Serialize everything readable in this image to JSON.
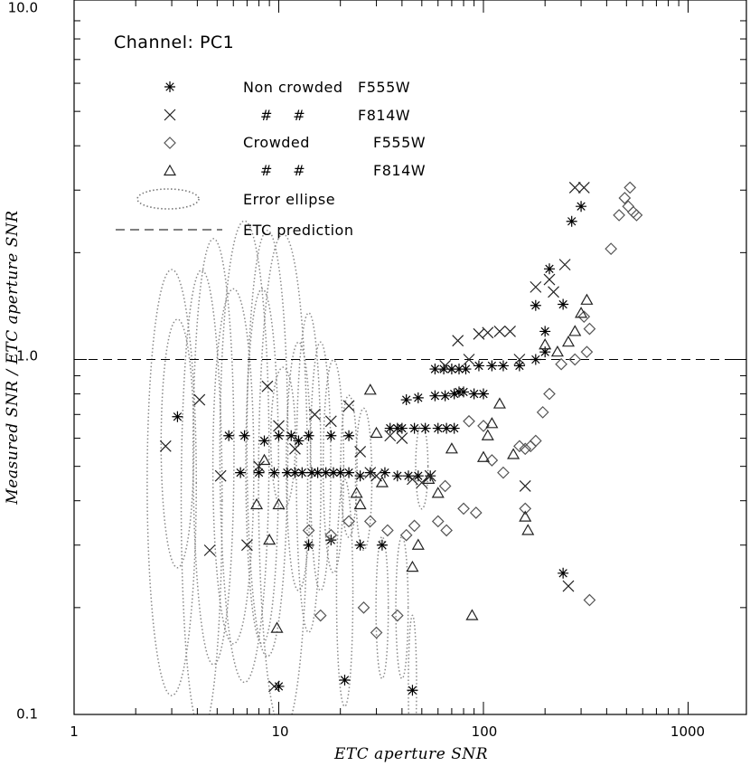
{
  "chart_data": {
    "type": "scatter",
    "title": "",
    "annotation": "Channel: PC1",
    "xlabel": "ETC aperture SNR",
    "ylabel": "Measured SNR / ETC aperture SNR",
    "xscale": "log",
    "yscale": "log",
    "xlim": [
      1,
      2000
    ],
    "ylim": [
      0.1,
      10
    ],
    "x_tick_labels": [
      "1",
      "10",
      "100",
      "1000"
    ],
    "y_tick_labels": [
      "0.1",
      "1.0",
      "10.0"
    ],
    "reference_line": {
      "label": "ETC prediction",
      "y": 1.0,
      "style": "dashed"
    },
    "legend": {
      "placement": "top-left",
      "entries": [
        {
          "marker": "asterisk",
          "col1": "Non crowded",
          "col2": "F555W"
        },
        {
          "marker": "cross",
          "col1": "#    #",
          "col2": "F814W"
        },
        {
          "marker": "diamond",
          "col1": "Crowded",
          "col2": "F555W"
        },
        {
          "marker": "triangle",
          "col1": "#    #",
          "col2": "F814W"
        },
        {
          "marker": "ellipse",
          "col1": "Error ellipse",
          "col2": ""
        },
        {
          "marker": "dashed-line",
          "col1": "ETC prediction",
          "col2": ""
        }
      ]
    },
    "series": [
      {
        "name": "Non crowded F555W",
        "marker": "asterisk",
        "points": [
          [
            3.2,
            0.69
          ],
          [
            5.7,
            0.61
          ],
          [
            6.8,
            0.61
          ],
          [
            8.5,
            0.59
          ],
          [
            10,
            0.61
          ],
          [
            11.5,
            0.61
          ],
          [
            12.5,
            0.59
          ],
          [
            14,
            0.61
          ],
          [
            18,
            0.61
          ],
          [
            22,
            0.61
          ],
          [
            6.5,
            0.48
          ],
          [
            8,
            0.48
          ],
          [
            9.5,
            0.48
          ],
          [
            11,
            0.48
          ],
          [
            12,
            0.48
          ],
          [
            13,
            0.48
          ],
          [
            14.5,
            0.48
          ],
          [
            15.5,
            0.48
          ],
          [
            17,
            0.48
          ],
          [
            18.5,
            0.48
          ],
          [
            20,
            0.48
          ],
          [
            22,
            0.48
          ],
          [
            25,
            0.47
          ],
          [
            28,
            0.48
          ],
          [
            33,
            0.48
          ],
          [
            38,
            0.47
          ],
          [
            43,
            0.47
          ],
          [
            48,
            0.47
          ],
          [
            55,
            0.47
          ],
          [
            35,
            0.64
          ],
          [
            38,
            0.64
          ],
          [
            40,
            0.64
          ],
          [
            46,
            0.64
          ],
          [
            52,
            0.64
          ],
          [
            60,
            0.64
          ],
          [
            66,
            0.64
          ],
          [
            72,
            0.64
          ],
          [
            42,
            0.77
          ],
          [
            48,
            0.78
          ],
          [
            58,
            0.79
          ],
          [
            65,
            0.79
          ],
          [
            72,
            0.8
          ],
          [
            76,
            0.81
          ],
          [
            80,
            0.81
          ],
          [
            90,
            0.8
          ],
          [
            100,
            0.8
          ],
          [
            58,
            0.94
          ],
          [
            64,
            0.94
          ],
          [
            70,
            0.94
          ],
          [
            76,
            0.94
          ],
          [
            82,
            0.94
          ],
          [
            95,
            0.96
          ],
          [
            110,
            0.96
          ],
          [
            125,
            0.96
          ],
          [
            150,
            0.96
          ],
          [
            180,
            1.0
          ],
          [
            200,
            1.05
          ],
          [
            180,
            1.42
          ],
          [
            200,
            1.2
          ],
          [
            210,
            1.8
          ],
          [
            245,
            1.43
          ],
          [
            270,
            2.45
          ],
          [
            300,
            2.7
          ],
          [
            245,
            0.25
          ],
          [
            14,
            0.3
          ],
          [
            18,
            0.31
          ],
          [
            25,
            0.3
          ],
          [
            32,
            0.3
          ],
          [
            10,
            0.12
          ],
          [
            21,
            0.125
          ],
          [
            45,
            0.117
          ]
        ]
      },
      {
        "name": "Non crowded F814W",
        "marker": "cross",
        "points": [
          [
            2.8,
            0.57
          ],
          [
            4.1,
            0.77
          ],
          [
            5.2,
            0.47
          ],
          [
            8.8,
            0.84
          ],
          [
            4.6,
            0.29
          ],
          [
            7,
            0.3
          ],
          [
            10,
            0.65
          ],
          [
            12,
            0.56
          ],
          [
            15,
            0.7
          ],
          [
            18,
            0.67
          ],
          [
            22,
            0.74
          ],
          [
            25,
            0.55
          ],
          [
            28,
            0.48
          ],
          [
            30,
            0.47
          ],
          [
            35,
            0.61
          ],
          [
            40,
            0.6
          ],
          [
            45,
            0.46
          ],
          [
            50,
            0.45
          ],
          [
            55,
            0.47
          ],
          [
            65,
            0.96
          ],
          [
            75,
            1.13
          ],
          [
            85,
            1.0
          ],
          [
            95,
            1.18
          ],
          [
            105,
            1.19
          ],
          [
            120,
            1.2
          ],
          [
            135,
            1.2
          ],
          [
            150,
            1.0
          ],
          [
            180,
            1.6
          ],
          [
            210,
            1.68
          ],
          [
            220,
            1.55
          ],
          [
            250,
            1.85
          ],
          [
            280,
            3.05
          ],
          [
            310,
            3.05
          ],
          [
            260,
            0.23
          ],
          [
            160,
            0.44
          ],
          [
            9.5,
            0.12
          ],
          [
            8,
            0.5
          ]
        ]
      },
      {
        "name": "Crowded F555W",
        "marker": "diamond",
        "points": [
          [
            14,
            0.33
          ],
          [
            16,
            0.19
          ],
          [
            18,
            0.32
          ],
          [
            22,
            0.35
          ],
          [
            26,
            0.2
          ],
          [
            28,
            0.35
          ],
          [
            30,
            0.17
          ],
          [
            34,
            0.33
          ],
          [
            38,
            0.19
          ],
          [
            42,
            0.32
          ],
          [
            46,
            0.34
          ],
          [
            60,
            0.35
          ],
          [
            66,
            0.33
          ],
          [
            80,
            0.38
          ],
          [
            92,
            0.37
          ],
          [
            110,
            0.52
          ],
          [
            125,
            0.48
          ],
          [
            150,
            0.57
          ],
          [
            160,
            0.56
          ],
          [
            170,
            0.57
          ],
          [
            180,
            0.59
          ],
          [
            195,
            0.71
          ],
          [
            210,
            0.8
          ],
          [
            240,
            0.97
          ],
          [
            280,
            1.0
          ],
          [
            320,
            1.05
          ],
          [
            330,
            1.22
          ],
          [
            310,
            1.32
          ],
          [
            330,
            0.21
          ],
          [
            160,
            0.38
          ],
          [
            420,
            2.05
          ],
          [
            460,
            2.55
          ],
          [
            490,
            2.85
          ],
          [
            510,
            2.7
          ],
          [
            520,
            3.05
          ],
          [
            540,
            2.6
          ],
          [
            560,
            2.55
          ],
          [
            85,
            0.67
          ],
          [
            100,
            0.65
          ],
          [
            65,
            0.44
          ]
        ]
      },
      {
        "name": "Crowded F814W",
        "marker": "triangle",
        "points": [
          [
            9.8,
            0.175
          ],
          [
            9,
            0.31
          ],
          [
            10,
            0.39
          ],
          [
            7.8,
            0.39
          ],
          [
            24,
            0.42
          ],
          [
            25,
            0.39
          ],
          [
            28,
            0.82
          ],
          [
            30,
            0.62
          ],
          [
            32,
            0.45
          ],
          [
            45,
            0.26
          ],
          [
            48,
            0.3
          ],
          [
            54,
            0.46
          ],
          [
            60,
            0.42
          ],
          [
            70,
            0.56
          ],
          [
            88,
            0.19
          ],
          [
            100,
            0.53
          ],
          [
            105,
            0.61
          ],
          [
            110,
            0.66
          ],
          [
            120,
            0.75
          ],
          [
            140,
            0.54
          ],
          [
            160,
            0.36
          ],
          [
            165,
            0.33
          ],
          [
            200,
            1.1
          ],
          [
            230,
            1.05
          ],
          [
            260,
            1.12
          ],
          [
            280,
            1.2
          ],
          [
            320,
            1.47
          ],
          [
            300,
            1.35
          ],
          [
            8.5,
            0.52
          ]
        ]
      }
    ],
    "error_ellipses": [
      [
        3,
        0.45,
        0.12,
        0.6
      ],
      [
        3.2,
        0.58,
        0.08,
        0.35
      ],
      [
        4.2,
        0.4,
        0.1,
        0.65
      ],
      [
        4.8,
        0.55,
        0.1,
        0.6
      ],
      [
        6,
        0.5,
        0.1,
        0.5
      ],
      [
        6.8,
        0.55,
        0.12,
        0.65
      ],
      [
        8.3,
        0.5,
        0.08,
        0.5
      ],
      [
        8.8,
        0.58,
        0.1,
        0.6
      ],
      [
        10.5,
        0.45,
        0.12,
        0.7
      ],
      [
        10.5,
        0.6,
        0.06,
        0.2
      ],
      [
        12.5,
        0.5,
        0.06,
        0.35
      ],
      [
        14,
        0.48,
        0.06,
        0.45
      ],
      [
        16,
        0.5,
        0.05,
        0.35
      ],
      [
        18.5,
        0.5,
        0.05,
        0.3
      ],
      [
        21,
        0.22,
        0.04,
        0.32
      ],
      [
        22,
        0.5,
        0.04,
        0.2
      ],
      [
        26,
        0.46,
        0.04,
        0.2
      ],
      [
        32,
        0.2,
        0.03,
        0.2
      ],
      [
        40,
        0.2,
        0.03,
        0.2
      ],
      [
        45,
        0.12,
        0.02,
        0.2
      ],
      [
        50,
        0.5,
        0.03,
        0.12
      ]
    ]
  }
}
